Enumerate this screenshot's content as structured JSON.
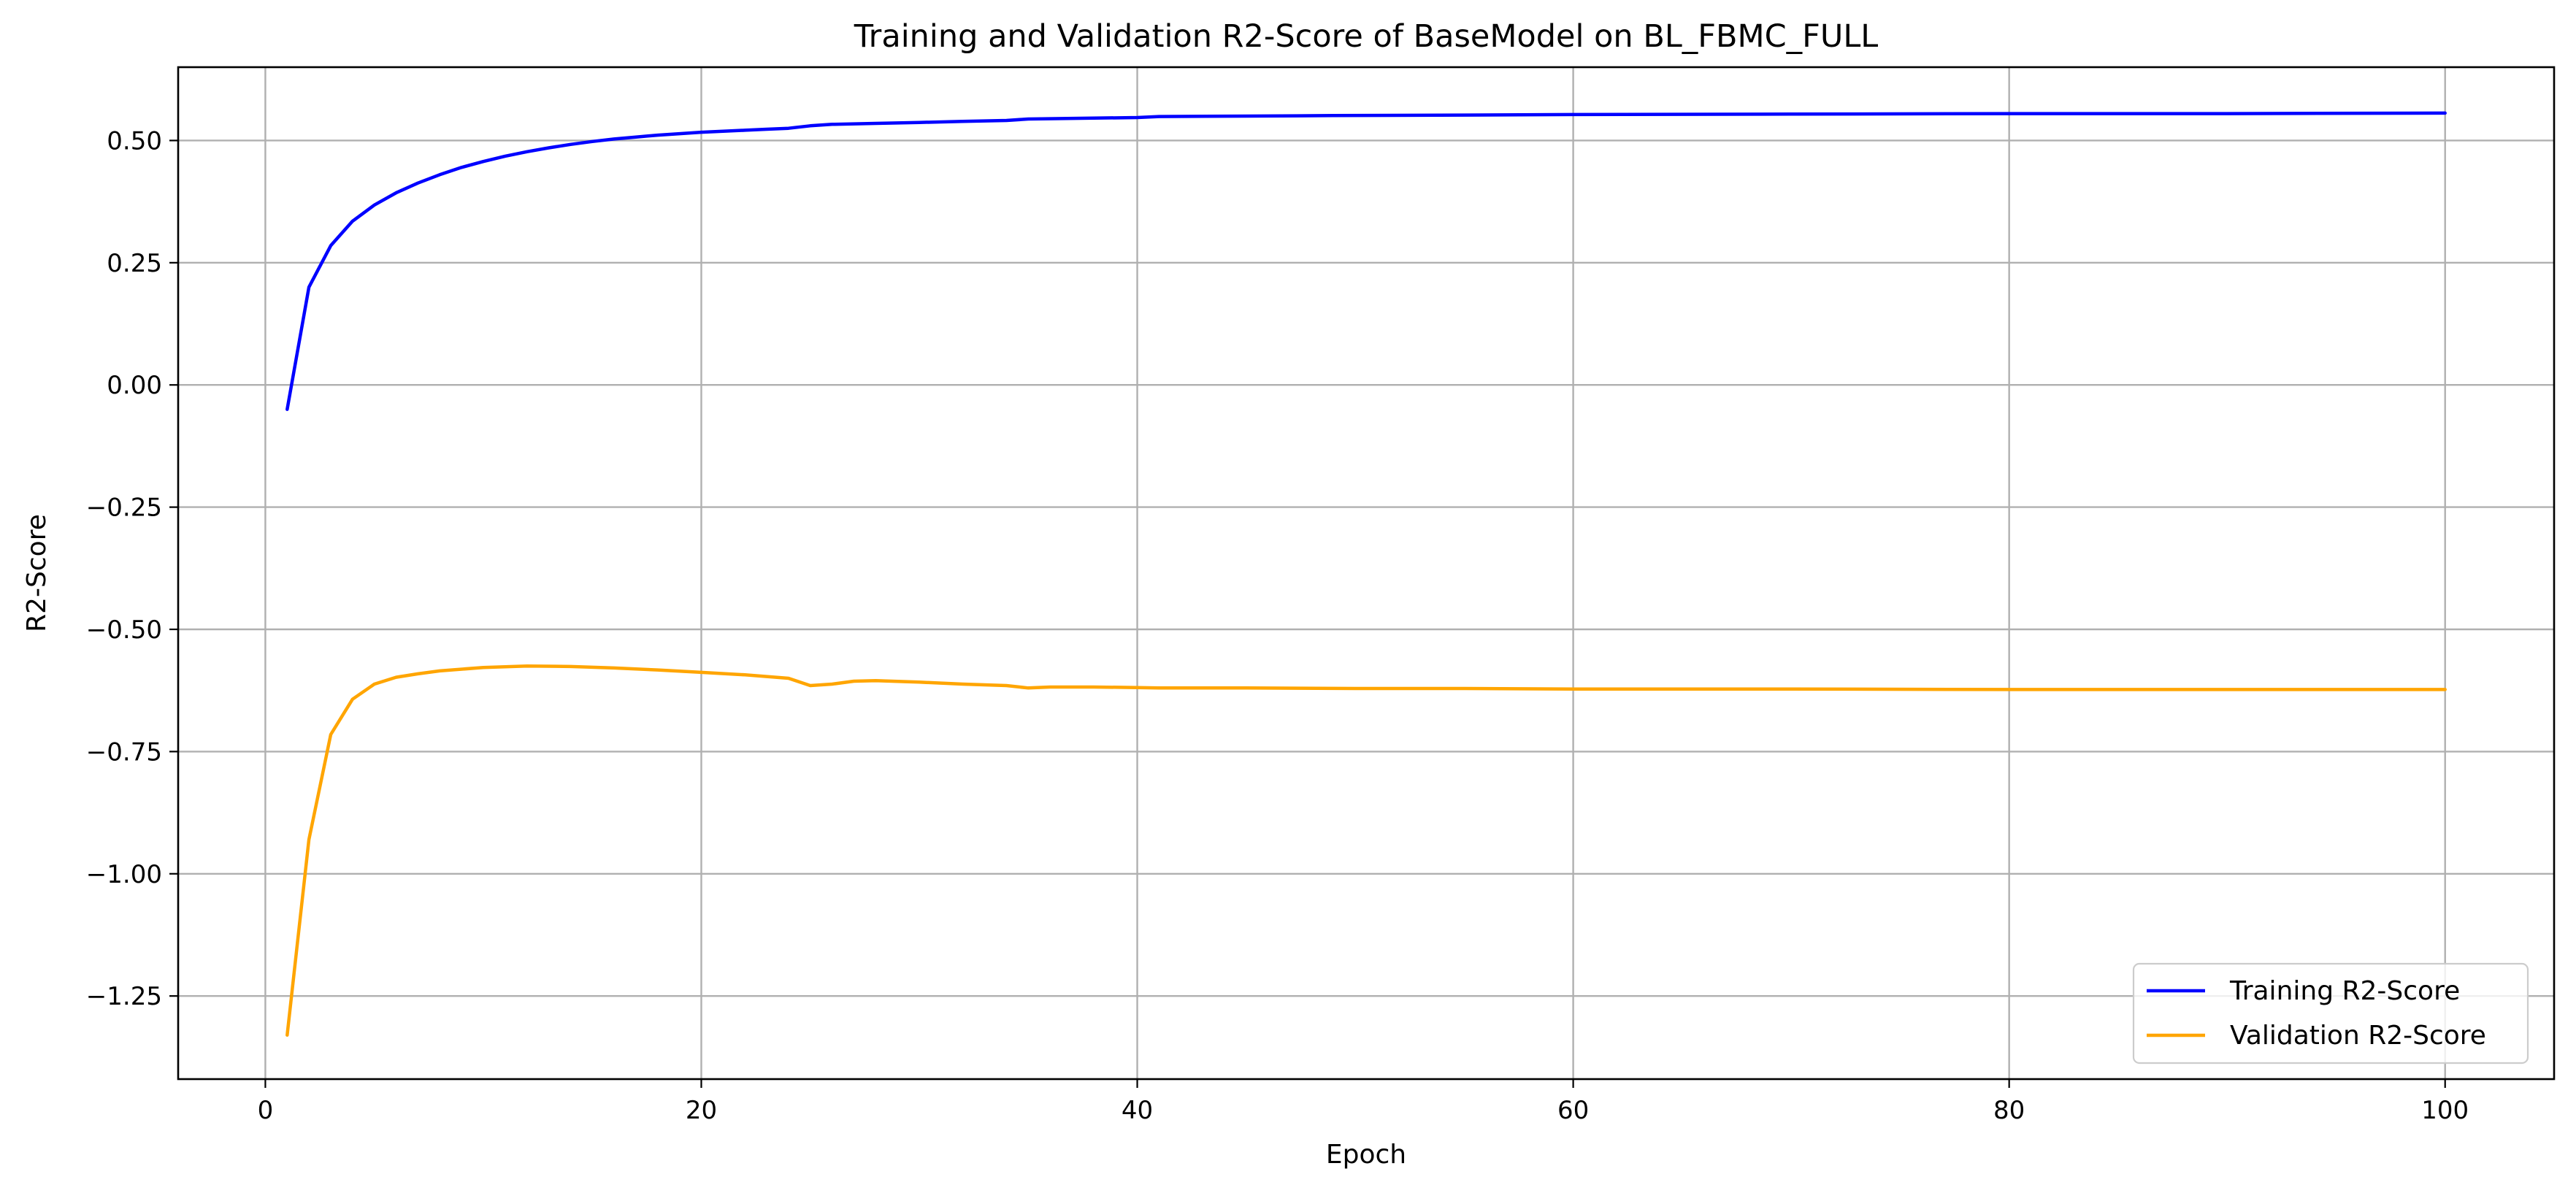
{
  "chart_data": {
    "type": "line",
    "title": "Training and Validation R2-Score of BaseModel on BL_FBMC_FULL",
    "xlabel": "Epoch",
    "ylabel": "R2-Score",
    "xlim": [
      -4,
      105
    ],
    "ylim": [
      -1.42,
      0.65
    ],
    "xticks": [
      0,
      20,
      40,
      60,
      80,
      100
    ],
    "xtick_labels": [
      "0",
      "20",
      "40",
      "60",
      "80",
      "100"
    ],
    "yticks": [
      0.5,
      0.25,
      0.0,
      -0.25,
      -0.5,
      -0.75,
      -1.0,
      -1.25
    ],
    "ytick_labels": [
      "0.50",
      "0.25",
      "0.00",
      "−0.25",
      "−0.50",
      "−0.75",
      "−1.00",
      "−1.25"
    ],
    "grid": true,
    "legend": "bottom-right",
    "series": [
      {
        "name": "Training R2-Score",
        "color": "#0000ff",
        "x": [
          1,
          2,
          3,
          4,
          5,
          6,
          7,
          8,
          9,
          10,
          11,
          12,
          13,
          14,
          15,
          16,
          17,
          18,
          19,
          20,
          21,
          22,
          23,
          24,
          25,
          26,
          28,
          30,
          32,
          34,
          35,
          40,
          41,
          45,
          49,
          55,
          60,
          70,
          80,
          90,
          100
        ],
        "y": [
          -0.05,
          0.2,
          0.285,
          0.335,
          0.368,
          0.393,
          0.413,
          0.43,
          0.445,
          0.457,
          0.468,
          0.477,
          0.485,
          0.492,
          0.498,
          0.503,
          0.507,
          0.511,
          0.514,
          0.517,
          0.519,
          0.521,
          0.523,
          0.525,
          0.53,
          0.533,
          0.535,
          0.537,
          0.539,
          0.541,
          0.544,
          0.547,
          0.549,
          0.55,
          0.551,
          0.552,
          0.553,
          0.554,
          0.555,
          0.555,
          0.556
        ]
      },
      {
        "name": "Validation R2-Score",
        "color": "#ffa500",
        "x": [
          1,
          2,
          3,
          4,
          5,
          6,
          7,
          8,
          10,
          12,
          14,
          16,
          18,
          20,
          22,
          24,
          25,
          26,
          27,
          28,
          30,
          32,
          34,
          35,
          36,
          38,
          40,
          41,
          45,
          50,
          55,
          60,
          70,
          80,
          90,
          100
        ],
        "y": [
          -1.33,
          -0.93,
          -0.715,
          -0.643,
          -0.612,
          -0.598,
          -0.591,
          -0.585,
          -0.578,
          -0.575,
          -0.576,
          -0.579,
          -0.583,
          -0.588,
          -0.593,
          -0.6,
          -0.615,
          -0.612,
          -0.606,
          -0.605,
          -0.608,
          -0.612,
          -0.615,
          -0.62,
          -0.618,
          -0.618,
          -0.619,
          -0.62,
          -0.62,
          -0.621,
          -0.621,
          -0.622,
          -0.622,
          -0.623,
          -0.623,
          -0.623
        ]
      }
    ]
  }
}
